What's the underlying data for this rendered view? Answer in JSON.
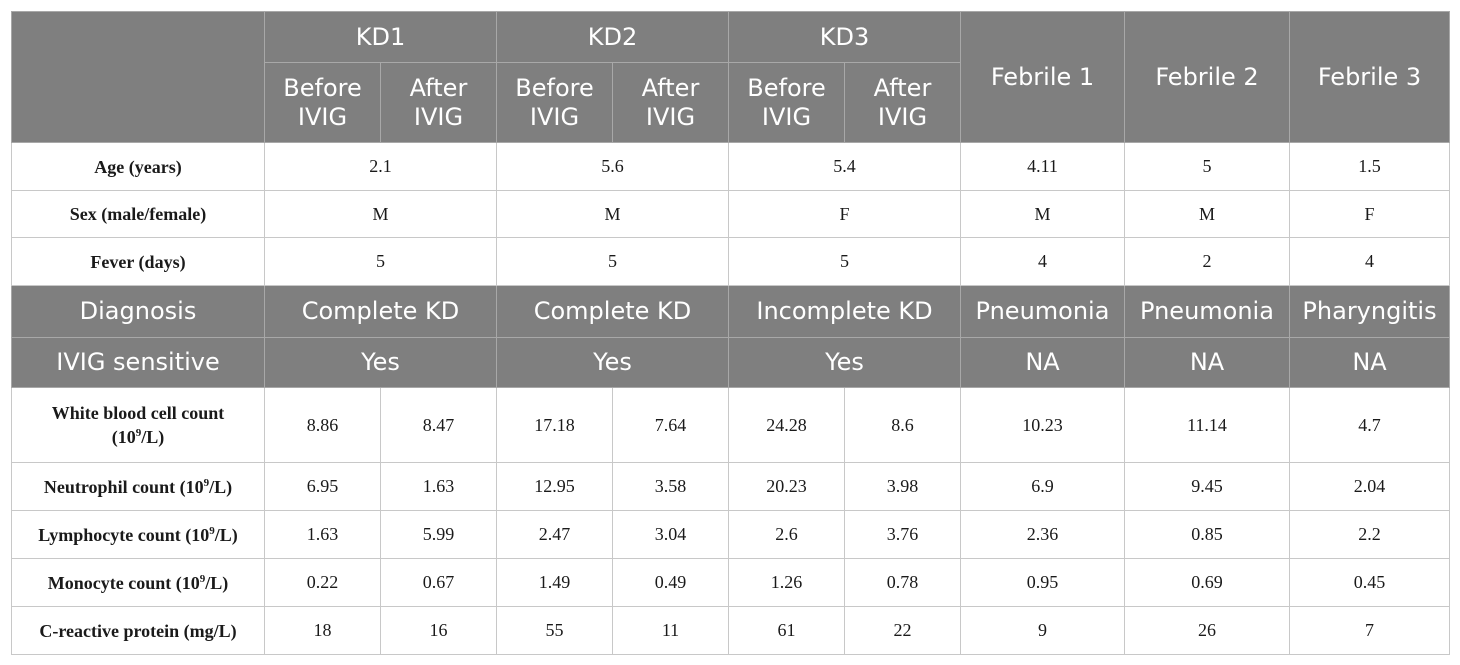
{
  "header": {
    "groups": [
      "KD1",
      "KD2",
      "KD3"
    ],
    "before_label": "Before IVIG",
    "after_label": "After IVIG",
    "febrile": [
      "Febrile 1",
      "Febrile 2",
      "Febrile 3"
    ]
  },
  "rows": {
    "age": {
      "label": "Age (years)",
      "values": [
        "2.1",
        "5.6",
        "5.4",
        "4.11",
        "5",
        "1.5"
      ]
    },
    "sex": {
      "label": "Sex (male/female)",
      "values": [
        "M",
        "M",
        "F",
        "M",
        "M",
        "F"
      ]
    },
    "fever": {
      "label": "Fever (days)",
      "values": [
        "5",
        "5",
        "5",
        "4",
        "2",
        "4"
      ]
    },
    "diagnosis": {
      "label": "Diagnosis",
      "values": [
        "Complete KD",
        "Complete KD",
        "Incomplete KD",
        "Pneumonia",
        "Pneumonia",
        "Pharyngitis"
      ]
    },
    "ivig": {
      "label": "IVIG sensitive",
      "values": [
        "Yes",
        "Yes",
        "Yes",
        "NA",
        "NA",
        "NA"
      ]
    },
    "wbc": {
      "label_main": "White blood cell count",
      "label_unit_pre": "(10",
      "label_sup": "9",
      "label_unit_post": "/L)",
      "values": [
        "8.86",
        "8.47",
        "17.18",
        "7.64",
        "24.28",
        "8.6",
        "10.23",
        "11.14",
        "4.7"
      ]
    },
    "neut": {
      "label_main": "Neutrophil count (10",
      "label_sup": "9",
      "label_post": "/L)",
      "values": [
        "6.95",
        "1.63",
        "12.95",
        "3.58",
        "20.23",
        "3.98",
        "6.9",
        "9.45",
        "2.04"
      ]
    },
    "lymph": {
      "label_main": "Lymphocyte count (10",
      "label_sup": "9",
      "label_post": "/L)",
      "values": [
        "1.63",
        "5.99",
        "2.47",
        "3.04",
        "2.6",
        "3.76",
        "2.36",
        "0.85",
        "2.2"
      ]
    },
    "mono": {
      "label_main": "Monocyte count (10",
      "label_sup": "9",
      "label_post": "/L)",
      "values": [
        "0.22",
        "0.67",
        "1.49",
        "0.49",
        "1.26",
        "0.78",
        "0.95",
        "0.69",
        "0.45"
      ]
    },
    "crp": {
      "label": "C-reactive protein (mg/L)",
      "values": [
        "18",
        "16",
        "55",
        "11",
        "61",
        "22",
        "9",
        "26",
        "7"
      ]
    }
  }
}
